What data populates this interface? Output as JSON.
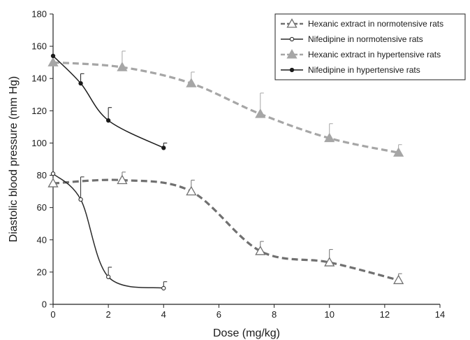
{
  "chart_data": {
    "type": "line",
    "title": "",
    "xlabel": "Dose (mg/kg)",
    "ylabel": "Diastolic blood pressure (mm Hg)",
    "xlim": [
      0,
      14
    ],
    "ylim": [
      0,
      180
    ],
    "xticks": [
      "0",
      "2",
      "4",
      "6",
      "8",
      "10",
      "12",
      "14"
    ],
    "yticks": [
      "0",
      "20",
      "40",
      "60",
      "80",
      "100",
      "120",
      "140",
      "160",
      "180"
    ],
    "grid": false,
    "legend_position": "top-right",
    "series": [
      {
        "name": "Hexanic extract in normotensive rats",
        "color": "#707070",
        "line_style": "dashed",
        "marker": "triangle-open",
        "x": [
          0,
          2.5,
          5,
          7.5,
          10,
          12.5
        ],
        "y": [
          75,
          77,
          70,
          33,
          26,
          15
        ],
        "error": [
          0,
          5,
          7,
          6,
          8,
          4
        ]
      },
      {
        "name": "Nifedipine in normotensive rats",
        "color": "#2a2a2a",
        "line_style": "solid",
        "marker": "circle-open",
        "x": [
          0,
          1,
          2,
          4
        ],
        "y": [
          81,
          65,
          17,
          10
        ],
        "error": [
          0,
          14,
          6,
          4
        ]
      },
      {
        "name": "Hexanic extract in hypertensive rats",
        "color": "#a6a6a6",
        "line_style": "dashed",
        "marker": "triangle-filled",
        "x": [
          0,
          2.5,
          5,
          7.5,
          10,
          12.5
        ],
        "y": [
          150,
          147,
          137,
          118,
          103,
          94
        ],
        "error": [
          0,
          10,
          7,
          13,
          9,
          5
        ]
      },
      {
        "name": "Nifedipine in hypertensive rats",
        "color": "#1a1a1a",
        "line_style": "solid",
        "marker": "circle-filled",
        "x": [
          0,
          1,
          2,
          4
        ],
        "y": [
          154,
          137,
          114,
          97
        ],
        "error": [
          0,
          6,
          8,
          3
        ]
      }
    ]
  }
}
